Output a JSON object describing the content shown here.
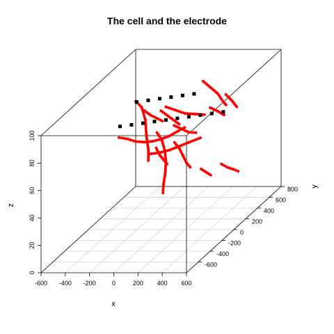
{
  "chart_data": {
    "type": "scatter3d",
    "title": "The cell and the electrode",
    "xlabel": "x",
    "ylabel": "y",
    "zlabel": "z",
    "xlim": [
      -600,
      600
    ],
    "ylim": [
      -800,
      800
    ],
    "zlim": [
      0,
      100
    ],
    "x_ticks": [
      "-600",
      "-400",
      "-200",
      "0",
      "200",
      "400",
      "600"
    ],
    "y_ticks": [
      "-600",
      "-400",
      "-200",
      "0",
      "200",
      "400",
      "600",
      "800"
    ],
    "z_ticks": [
      "0",
      "20",
      "40",
      "60",
      "80",
      "100"
    ],
    "grid": true,
    "colors": {
      "cell": "#ff0000",
      "electrode": "#000000",
      "grid": "#d3d3d3",
      "box": "#000000"
    },
    "series": [
      {
        "kind": "cell",
        "polylines": [
          [
            [
              -180,
              -60,
              96
            ],
            [
              -150,
              -20,
              90
            ],
            [
              -130,
              0,
              80
            ],
            [
              -120,
              0,
              68
            ],
            [
              -110,
              10,
              58
            ],
            [
              -110,
              10,
              50
            ]
          ],
          [
            [
              -250,
              -200,
              75
            ],
            [
              -200,
              -150,
              72
            ],
            [
              -150,
              -120,
              69
            ],
            [
              -100,
              -80,
              67
            ],
            [
              -50,
              -40,
              66
            ],
            [
              0,
              0,
              66
            ],
            [
              50,
              30,
              67
            ],
            [
              100,
              60,
              69
            ],
            [
              150,
              90,
              71
            ]
          ],
          [
            [
              -20,
              -30,
              72
            ],
            [
              10,
              -10,
              66
            ],
            [
              30,
              0,
              58
            ],
            [
              40,
              0,
              50
            ],
            [
              40,
              -10,
              42
            ],
            [
              30,
              -20,
              34
            ],
            [
              30,
              -30,
              28
            ]
          ],
          [
            [
              0,
              -200,
              63
            ],
            [
              60,
              -150,
              62
            ],
            [
              120,
              -100,
              62
            ],
            [
              180,
              -50,
              63
            ],
            [
              240,
              0,
              64
            ],
            [
              300,
              50,
              65
            ]
          ],
          [
            [
              20,
              40,
              88
            ],
            [
              80,
              80,
              84
            ],
            [
              140,
              120,
              80
            ],
            [
              200,
              160,
              78
            ],
            [
              260,
              200,
              76
            ]
          ],
          [
            [
              140,
              -60,
              66
            ],
            [
              160,
              -20,
              60
            ],
            [
              180,
              0,
              54
            ],
            [
              200,
              20,
              48
            ],
            [
              220,
              40,
              44
            ]
          ],
          [
            [
              220,
              260,
              98
            ],
            [
              260,
              300,
              92
            ],
            [
              300,
              340,
              86
            ],
            [
              330,
              360,
              80
            ],
            [
              350,
              380,
              76
            ]
          ],
          [
            [
              330,
              420,
              82
            ],
            [
              360,
              460,
              76
            ],
            [
              380,
              500,
              70
            ]
          ],
          [
            [
              220,
              380,
              74
            ],
            [
              260,
              420,
              70
            ],
            [
              300,
              450,
              66
            ]
          ],
          [
            [
              400,
              200,
              40
            ],
            [
              430,
              240,
              36
            ],
            [
              460,
              280,
              33
            ],
            [
              480,
              320,
              30
            ]
          ],
          [
            [
              340,
              -20,
              45
            ],
            [
              370,
              0,
              42
            ],
            [
              400,
              20,
              39
            ]
          ],
          [
            [
              -60,
              120,
              82
            ],
            [
              -20,
              140,
              78
            ],
            [
              20,
              160,
              74
            ],
            [
              60,
              180,
              70
            ]
          ],
          [
            [
              -100,
              -80,
              90
            ],
            [
              -60,
              -60,
              86
            ],
            [
              -20,
              -40,
              83
            ],
            [
              20,
              -20,
              80
            ]
          ],
          [
            [
              60,
              100,
              72
            ],
            [
              100,
              140,
              68
            ],
            [
              140,
              180,
              64
            ],
            [
              180,
              220,
              62
            ]
          ],
          [
            [
              -60,
              40,
              58
            ],
            [
              -40,
              60,
              52
            ],
            [
              -20,
              80,
              48
            ],
            [
              0,
              100,
              44
            ]
          ]
        ]
      },
      {
        "kind": "electrode",
        "points": [
          [
            -280,
            -120,
            80
          ],
          [
            -200,
            -90,
            80
          ],
          [
            -120,
            -60,
            80
          ],
          [
            -40,
            -30,
            80
          ],
          [
            40,
            0,
            80
          ],
          [
            120,
            30,
            80
          ],
          [
            200,
            60,
            80
          ],
          [
            280,
            90,
            80
          ],
          [
            360,
            120,
            80
          ],
          [
            440,
            150,
            80
          ],
          [
            -240,
            80,
            90
          ],
          [
            -160,
            110,
            90
          ],
          [
            -80,
            140,
            90
          ],
          [
            0,
            170,
            90
          ],
          [
            80,
            200,
            90
          ],
          [
            160,
            230,
            90
          ]
        ]
      }
    ]
  }
}
